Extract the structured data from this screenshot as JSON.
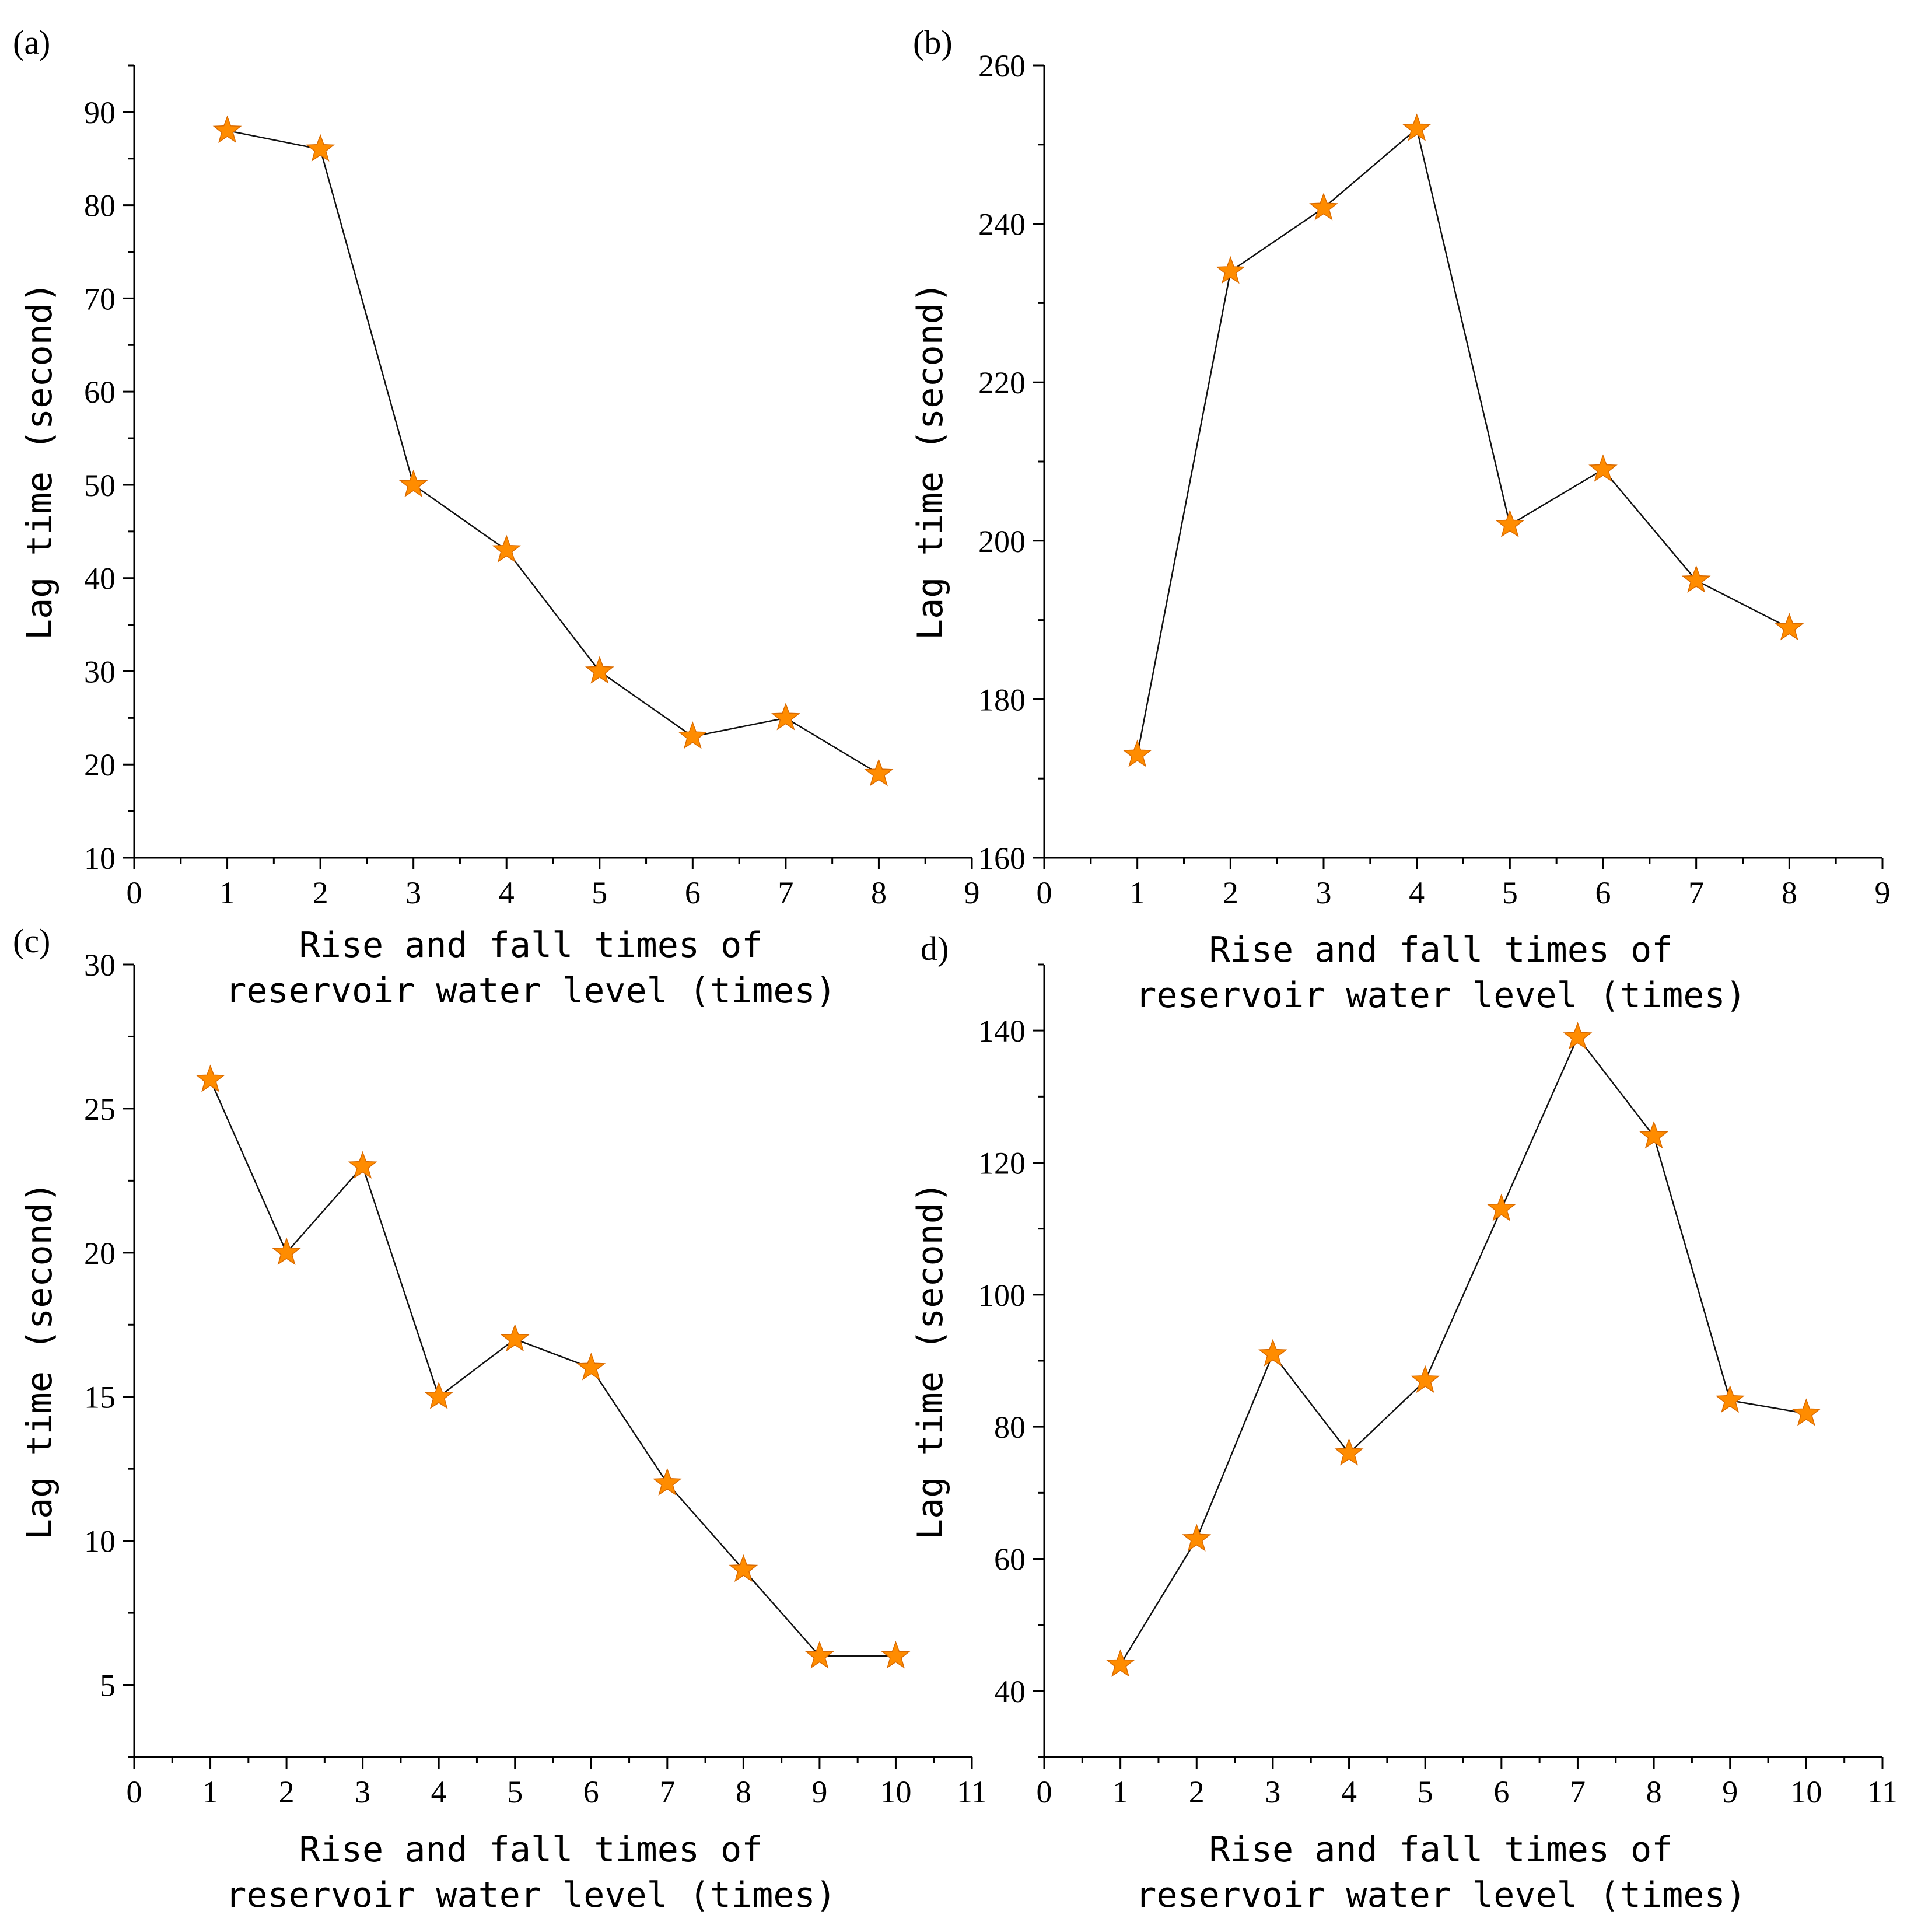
{
  "colors": {
    "marker": "#ff8c00",
    "line": "#111111",
    "axis": "#000000"
  },
  "marker_icon": "star-marker-icon",
  "chart_data": [
    {
      "type": "line",
      "panel_label": "(a)",
      "xlabel_line1": "Rise and fall times of",
      "xlabel_line2": "reservoir water level (times)",
      "ylabel": "Lag time (second)",
      "x": [
        1,
        2,
        3,
        4,
        5,
        6,
        7,
        8
      ],
      "values": [
        88,
        86,
        50,
        43,
        30,
        23,
        25,
        19
      ],
      "xlim": [
        0,
        9
      ],
      "ylim": [
        10,
        95
      ],
      "xticks": [
        0,
        1,
        2,
        3,
        4,
        5,
        6,
        7,
        8,
        9
      ],
      "yticks": [
        10,
        20,
        30,
        40,
        50,
        60,
        70,
        80,
        90
      ],
      "grid": false
    },
    {
      "type": "line",
      "panel_label": "(b)",
      "xlabel_line1": "Rise and fall times of",
      "xlabel_line2": "reservoir water level (times)",
      "ylabel": "Lag time (second)",
      "x": [
        1,
        2,
        3,
        4,
        5,
        6,
        7,
        8
      ],
      "values": [
        173,
        234,
        242,
        252,
        202,
        209,
        195,
        189
      ],
      "xlim": [
        0,
        9
      ],
      "ylim": [
        160,
        260
      ],
      "xticks": [
        0,
        1,
        2,
        3,
        4,
        5,
        6,
        7,
        8,
        9
      ],
      "yticks": [
        160,
        180,
        200,
        220,
        240,
        260
      ],
      "grid": false
    },
    {
      "type": "line",
      "panel_label": "(c)",
      "xlabel_line1": "Rise and fall times of",
      "xlabel_line2": "reservoir water level (times)",
      "ylabel": "Lag time (second)",
      "x": [
        1,
        2,
        3,
        4,
        5,
        6,
        7,
        8,
        9,
        10
      ],
      "values": [
        26,
        20,
        23,
        15,
        17,
        16,
        12,
        9,
        6,
        6
      ],
      "xlim": [
        0,
        11
      ],
      "ylim": [
        2.5,
        30
      ],
      "xticks": [
        0,
        1,
        2,
        3,
        4,
        5,
        6,
        7,
        8,
        9,
        10,
        11
      ],
      "yticks": [
        5,
        10,
        15,
        20,
        25,
        30
      ],
      "grid": false
    },
    {
      "type": "line",
      "panel_label": "d)",
      "xlabel_line1": "Rise and fall times of",
      "xlabel_line2": "reservoir water level (times)",
      "ylabel": "Lag time (second)",
      "x": [
        1,
        2,
        3,
        4,
        5,
        6,
        7,
        8,
        9,
        10
      ],
      "values": [
        44,
        63,
        91,
        76,
        87,
        113,
        139,
        124,
        84,
        82
      ],
      "xlim": [
        0,
        11
      ],
      "ylim": [
        30,
        150
      ],
      "xticks": [
        0,
        1,
        2,
        3,
        4,
        5,
        6,
        7,
        8,
        9,
        10,
        11
      ],
      "yticks": [
        40,
        60,
        80,
        100,
        120,
        140
      ],
      "grid": false
    }
  ]
}
